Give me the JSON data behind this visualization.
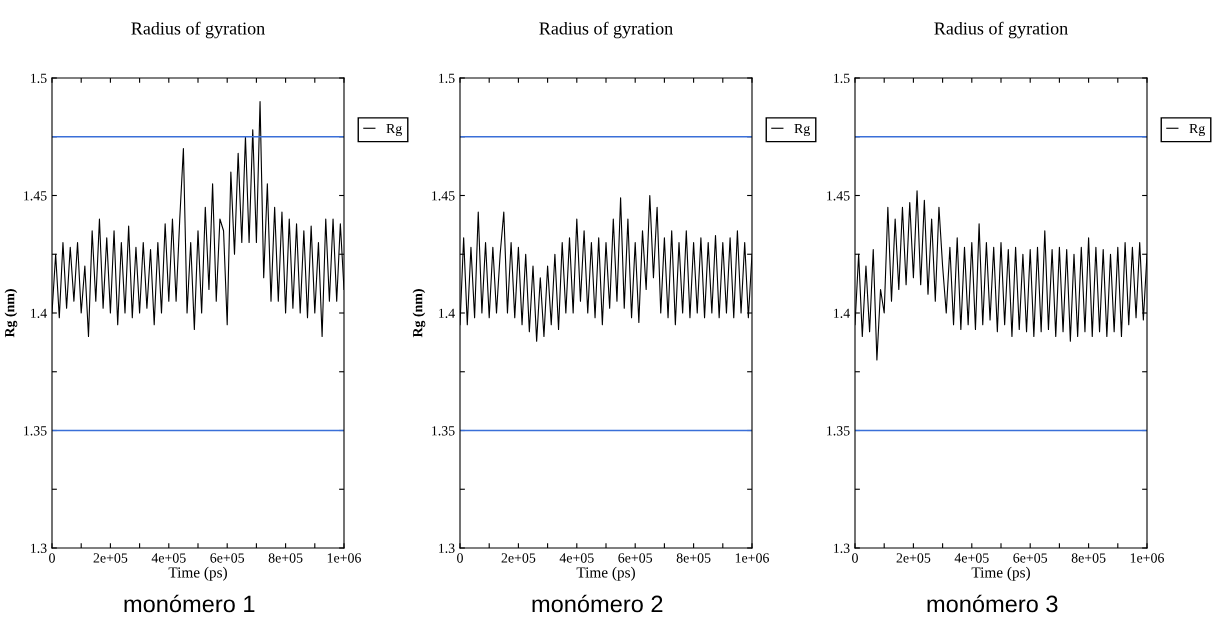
{
  "chart_data": [
    {
      "type": "line",
      "title": "Radius of gyration",
      "xlabel": "Time (ps)",
      "ylabel": "Rg (nm)",
      "legend": "top right",
      "grid": false,
      "x": [
        0,
        12500,
        25000,
        37500,
        50000,
        62500,
        75000,
        87500,
        100000,
        112500,
        125000,
        137500,
        150000,
        162500,
        175000,
        187500,
        200000,
        212500,
        225000,
        237500,
        250000,
        262500,
        275000,
        287500,
        300000,
        312500,
        325000,
        337500,
        350000,
        362500,
        375000,
        387500,
        400000,
        412500,
        425000,
        437500,
        450000,
        462500,
        475000,
        487500,
        500000,
        512500,
        525000,
        537500,
        550000,
        562500,
        575000,
        587500,
        600000,
        612500,
        625000,
        637500,
        650000,
        662500,
        675000,
        687500,
        700000,
        712500,
        725000,
        737500,
        750000,
        762500,
        775000,
        787500,
        800000,
        812500,
        825000,
        837500,
        850000,
        862500,
        875000,
        887500,
        900000,
        912500,
        925000,
        937500,
        950000,
        962500,
        975000,
        987500,
        1000000
      ],
      "xlim": [
        0,
        1000000
      ],
      "xticks": [
        0,
        {
          "value": 100000,
          "label": null
        },
        {
          "value": 200000,
          "label": "2e+05"
        },
        {
          "value": 300000,
          "label": null
        },
        {
          "value": 400000,
          "label": "4e+05"
        },
        {
          "value": 500000,
          "label": null
        },
        {
          "value": 600000,
          "label": "6e+05"
        },
        {
          "value": 700000,
          "label": null
        },
        {
          "value": 800000,
          "label": "8e+05"
        },
        {
          "value": 900000,
          "label": null
        },
        {
          "value": 1000000,
          "label": "1e+06"
        }
      ],
      "ylim": [
        1.3,
        1.5
      ],
      "yticks": [
        1.3,
        {
          "value": 1.325,
          "label": null
        },
        1.35,
        {
          "value": 1.375,
          "label": null
        },
        1.4,
        {
          "value": 1.425,
          "label": null
        },
        1.45,
        {
          "value": 1.475,
          "label": null
        },
        1.5
      ],
      "ref_lines": [
        {
          "axis": "y",
          "value": 1.475,
          "color": "#3a6fd8"
        },
        {
          "axis": "y",
          "value": 1.35,
          "color": "#3a6fd8"
        }
      ],
      "annotations": [
        "monómero 1"
      ],
      "series": [
        {
          "name": "Rg",
          "color": "#000000",
          "values": [
            1.4,
            1.425,
            1.398,
            1.43,
            1.402,
            1.428,
            1.405,
            1.43,
            1.4,
            1.42,
            1.39,
            1.435,
            1.405,
            1.44,
            1.402,
            1.432,
            1.4,
            1.435,
            1.395,
            1.43,
            1.4,
            1.437,
            1.398,
            1.428,
            1.4,
            1.43,
            1.402,
            1.427,
            1.395,
            1.43,
            1.4,
            1.438,
            1.405,
            1.44,
            1.405,
            1.44,
            1.47,
            1.4,
            1.43,
            1.393,
            1.435,
            1.4,
            1.445,
            1.41,
            1.455,
            1.405,
            1.44,
            1.435,
            1.395,
            1.46,
            1.425,
            1.468,
            1.43,
            1.475,
            1.43,
            1.478,
            1.43,
            1.49,
            1.415,
            1.455,
            1.405,
            1.445,
            1.405,
            1.443,
            1.4,
            1.44,
            1.402,
            1.438,
            1.4,
            1.435,
            1.398,
            1.437,
            1.4,
            1.43,
            1.39,
            1.44,
            1.405,
            1.44,
            1.405,
            1.438,
            1.41
          ]
        }
      ]
    },
    {
      "type": "line",
      "title": "Radius of gyration",
      "xlabel": "Time (ps)",
      "ylabel": "Rg (nm)",
      "legend": "top right",
      "grid": false,
      "x": [
        0,
        12500,
        25000,
        37500,
        50000,
        62500,
        75000,
        87500,
        100000,
        112500,
        125000,
        137500,
        150000,
        162500,
        175000,
        187500,
        200000,
        212500,
        225000,
        237500,
        250000,
        262500,
        275000,
        287500,
        300000,
        312500,
        325000,
        337500,
        350000,
        362500,
        375000,
        387500,
        400000,
        412500,
        425000,
        437500,
        450000,
        462500,
        475000,
        487500,
        500000,
        512500,
        525000,
        537500,
        550000,
        562500,
        575000,
        587500,
        600000,
        612500,
        625000,
        637500,
        650000,
        662500,
        675000,
        687500,
        700000,
        712500,
        725000,
        737500,
        750000,
        762500,
        775000,
        787500,
        800000,
        812500,
        825000,
        837500,
        850000,
        862500,
        875000,
        887500,
        900000,
        912500,
        925000,
        937500,
        950000,
        962500,
        975000,
        987500,
        1000000
      ],
      "xlim": [
        0,
        1000000
      ],
      "xticks": [
        0,
        {
          "value": 100000,
          "label": null
        },
        {
          "value": 200000,
          "label": "2e+05"
        },
        {
          "value": 300000,
          "label": null
        },
        {
          "value": 400000,
          "label": "4e+05"
        },
        {
          "value": 500000,
          "label": null
        },
        {
          "value": 600000,
          "label": "6e+05"
        },
        {
          "value": 700000,
          "label": null
        },
        {
          "value": 800000,
          "label": "8e+05"
        },
        {
          "value": 900000,
          "label": null
        },
        {
          "value": 1000000,
          "label": "1e+06"
        }
      ],
      "ylim": [
        1.3,
        1.5
      ],
      "yticks": [
        1.3,
        {
          "value": 1.325,
          "label": null
        },
        1.35,
        {
          "value": 1.375,
          "label": null
        },
        1.4,
        {
          "value": 1.425,
          "label": null
        },
        1.45,
        {
          "value": 1.475,
          "label": null
        },
        1.5
      ],
      "ref_lines": [
        {
          "axis": "y",
          "value": 1.475,
          "color": "#3a6fd8"
        },
        {
          "axis": "y",
          "value": 1.35,
          "color": "#3a6fd8"
        }
      ],
      "annotations": [
        "monómero 2"
      ],
      "series": [
        {
          "name": "Rg",
          "color": "#000000",
          "values": [
            1.395,
            1.432,
            1.395,
            1.428,
            1.398,
            1.443,
            1.4,
            1.43,
            1.398,
            1.428,
            1.4,
            1.425,
            1.443,
            1.4,
            1.43,
            1.398,
            1.428,
            1.395,
            1.425,
            1.392,
            1.42,
            1.388,
            1.415,
            1.39,
            1.42,
            1.395,
            1.425,
            1.393,
            1.43,
            1.4,
            1.432,
            1.4,
            1.44,
            1.405,
            1.435,
            1.4,
            1.43,
            1.398,
            1.432,
            1.395,
            1.43,
            1.402,
            1.44,
            1.405,
            1.449,
            1.402,
            1.44,
            1.398,
            1.43,
            1.396,
            1.435,
            1.41,
            1.45,
            1.415,
            1.445,
            1.4,
            1.432,
            1.398,
            1.435,
            1.395,
            1.43,
            1.4,
            1.435,
            1.398,
            1.43,
            1.4,
            1.432,
            1.398,
            1.43,
            1.4,
            1.433,
            1.398,
            1.43,
            1.4,
            1.432,
            1.398,
            1.435,
            1.4,
            1.43,
            1.398,
            1.425
          ]
        }
      ]
    },
    {
      "type": "line",
      "title": "Radius of gyration",
      "xlabel": "Time (ps)",
      "legend": "top right",
      "grid": false,
      "x": [
        0,
        12500,
        25000,
        37500,
        50000,
        62500,
        75000,
        87500,
        100000,
        112500,
        125000,
        137500,
        150000,
        162500,
        175000,
        187500,
        200000,
        212500,
        225000,
        237500,
        250000,
        262500,
        275000,
        287500,
        300000,
        312500,
        325000,
        337500,
        350000,
        362500,
        375000,
        387500,
        400000,
        412500,
        425000,
        437500,
        450000,
        462500,
        475000,
        487500,
        500000,
        512500,
        525000,
        537500,
        550000,
        562500,
        575000,
        587500,
        600000,
        612500,
        625000,
        637500,
        650000,
        662500,
        675000,
        687500,
        700000,
        712500,
        725000,
        737500,
        750000,
        762500,
        775000,
        787500,
        800000,
        812500,
        825000,
        837500,
        850000,
        862500,
        875000,
        887500,
        900000,
        912500,
        925000,
        937500,
        950000,
        962500,
        975000,
        987500,
        1000000
      ],
      "xlim": [
        0,
        1000000
      ],
      "xticks": [
        0,
        {
          "value": 100000,
          "label": null
        },
        {
          "value": 200000,
          "label": "2e+05"
        },
        {
          "value": 300000,
          "label": null
        },
        {
          "value": 400000,
          "label": "4e+05"
        },
        {
          "value": 500000,
          "label": null
        },
        {
          "value": 600000,
          "label": "6e+05"
        },
        {
          "value": 700000,
          "label": null
        },
        {
          "value": 800000,
          "label": "8e+05"
        },
        {
          "value": 900000,
          "label": null
        },
        {
          "value": 1000000,
          "label": "1e+06"
        }
      ],
      "ylim": [
        1.3,
        1.5
      ],
      "yticks": [
        1.3,
        {
          "value": 1.325,
          "label": null
        },
        1.35,
        {
          "value": 1.375,
          "label": null
        },
        1.4,
        {
          "value": 1.425,
          "label": null
        },
        1.45,
        {
          "value": 1.475,
          "label": null
        },
        1.5
      ],
      "ref_lines": [
        {
          "axis": "y",
          "value": 1.475,
          "color": "#3a6fd8"
        },
        {
          "axis": "y",
          "value": 1.35,
          "color": "#3a6fd8"
        }
      ],
      "annotations": [
        "monómero 3"
      ],
      "series": [
        {
          "name": "Rg",
          "color": "#000000",
          "values": [
            1.395,
            1.425,
            1.39,
            1.42,
            1.392,
            1.427,
            1.38,
            1.41,
            1.4,
            1.445,
            1.405,
            1.44,
            1.41,
            1.445,
            1.412,
            1.447,
            1.415,
            1.452,
            1.412,
            1.448,
            1.408,
            1.44,
            1.405,
            1.445,
            1.42,
            1.4,
            1.428,
            1.395,
            1.432,
            1.393,
            1.428,
            1.395,
            1.43,
            1.393,
            1.438,
            1.395,
            1.43,
            1.397,
            1.428,
            1.392,
            1.43,
            1.395,
            1.427,
            1.39,
            1.428,
            1.393,
            1.425,
            1.392,
            1.427,
            1.39,
            1.428,
            1.392,
            1.435,
            1.393,
            1.427,
            1.39,
            1.428,
            1.392,
            1.427,
            1.388,
            1.425,
            1.39,
            1.428,
            1.392,
            1.432,
            1.39,
            1.428,
            1.392,
            1.427,
            1.39,
            1.425,
            1.392,
            1.428,
            1.39,
            1.43,
            1.395,
            1.428,
            1.398,
            1.43,
            1.397,
            1.425
          ]
        }
      ]
    }
  ]
}
